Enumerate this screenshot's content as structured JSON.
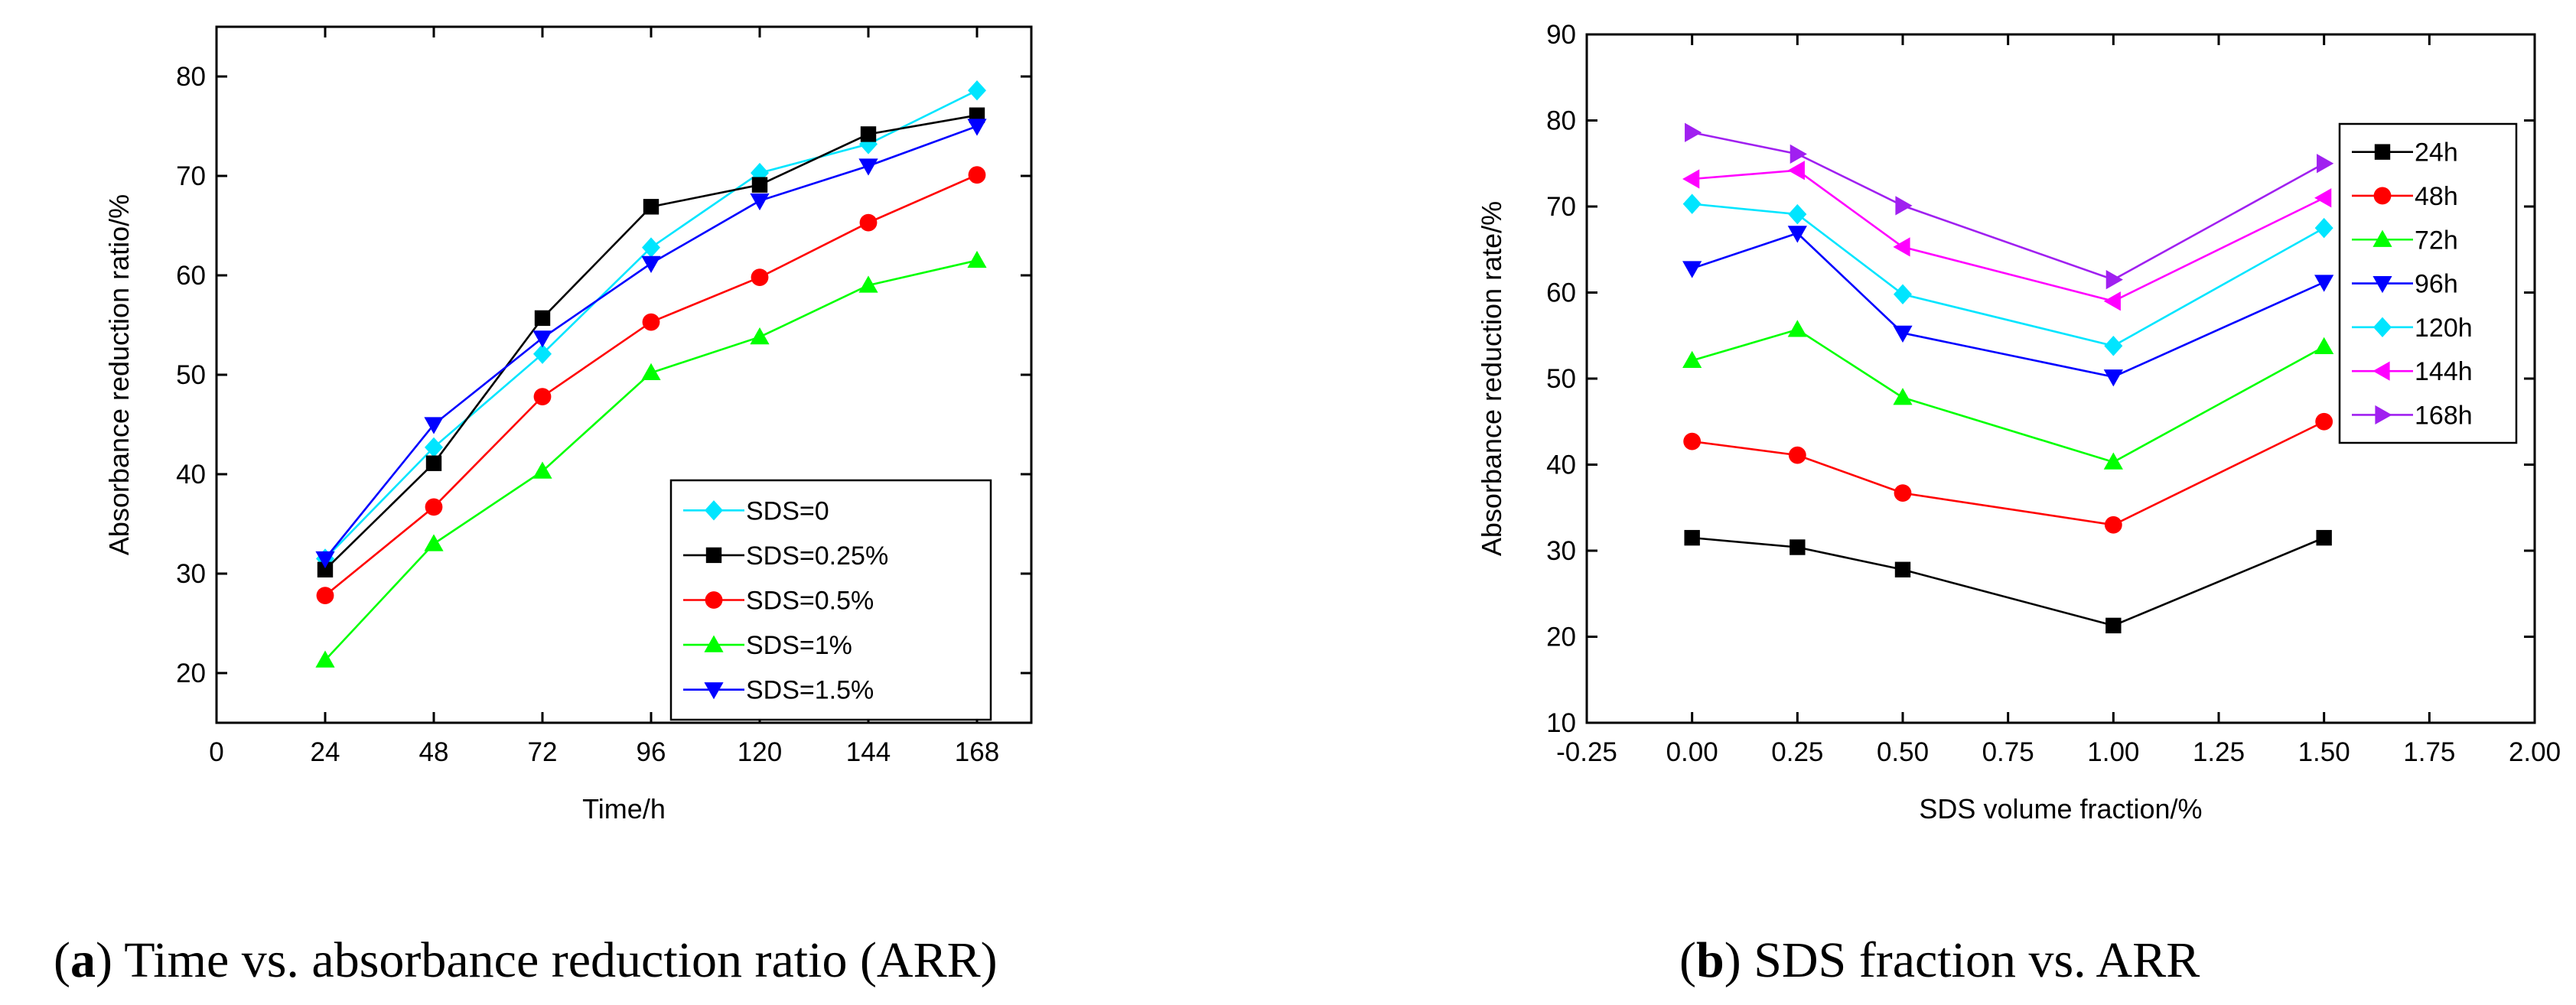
{
  "panels": [
    {
      "caption_letter": "a",
      "caption_text": " Time vs. absorbance reduction ratio (ARR)"
    },
    {
      "caption_letter": "b",
      "caption_text": " SDS fraction vs. ARR"
    }
  ],
  "chart_data": [
    {
      "type": "line",
      "title": "",
      "xlabel": "Time/h",
      "ylabel": "Absorbance reduction ratio/%",
      "xlim": [
        0,
        180
      ],
      "ylim": [
        15,
        85
      ],
      "x_ticks": [
        0,
        24,
        48,
        72,
        96,
        120,
        144,
        168
      ],
      "y_ticks": [
        20,
        30,
        40,
        50,
        60,
        70,
        80
      ],
      "x_tick_labels": [
        "0",
        "24",
        "48",
        "72",
        "96",
        "120",
        "144",
        "168"
      ],
      "y_tick_labels": [
        "20",
        "30",
        "40",
        "50",
        "60",
        "70",
        "80"
      ],
      "legend_position": "bottom-right",
      "x": [
        24,
        48,
        72,
        96,
        120,
        144,
        168
      ],
      "series": [
        {
          "name": "SDS=0",
          "color": "#00e5ff",
          "marker": "diamond",
          "values": [
            31.5,
            42.7,
            52.1,
            62.8,
            70.3,
            73.2,
            78.6
          ]
        },
        {
          "name": "SDS=0.25%",
          "color": "#000000",
          "marker": "square",
          "values": [
            30.4,
            41.1,
            55.7,
            66.9,
            69.1,
            74.2,
            76.1
          ]
        },
        {
          "name": "SDS=0.5%",
          "color": "#ff0000",
          "marker": "circle",
          "values": [
            27.8,
            36.7,
            47.8,
            55.3,
            59.8,
            65.3,
            70.1
          ]
        },
        {
          "name": "SDS=1%",
          "color": "#00ff00",
          "marker": "triangle-up",
          "values": [
            21.3,
            33.0,
            40.3,
            50.2,
            53.8,
            59.0,
            61.5
          ]
        },
        {
          "name": "SDS=1.5%",
          "color": "#0000ff",
          "marker": "triangle-down",
          "values": [
            31.5,
            45.0,
            53.7,
            61.2,
            67.5,
            71.0,
            75.0
          ]
        }
      ]
    },
    {
      "type": "line",
      "title": "",
      "xlabel": "SDS volume fraction/%",
      "ylabel": "Absorbance reduction rate/%",
      "xlim": [
        -0.25,
        2.0
      ],
      "ylim": [
        10,
        90
      ],
      "x_ticks": [
        -0.25,
        0,
        0.25,
        0.5,
        0.75,
        1.0,
        1.25,
        1.5,
        1.75,
        2.0
      ],
      "y_ticks": [
        10,
        20,
        30,
        40,
        50,
        60,
        70,
        80,
        90
      ],
      "x_tick_labels": [
        "-0.25",
        "0.00",
        "0.25",
        "0.50",
        "0.75",
        "1.00",
        "1.25",
        "1.50",
        "1.75",
        "2.00"
      ],
      "y_tick_labels": [
        "10",
        "20",
        "30",
        "40",
        "50",
        "60",
        "70",
        "80",
        "90"
      ],
      "legend_position": "top-right",
      "x": [
        0,
        0.25,
        0.5,
        1.0,
        1.5
      ],
      "series": [
        {
          "name": "24h",
          "color": "#000000",
          "marker": "square",
          "values": [
            31.5,
            30.4,
            27.8,
            21.3,
            31.5
          ]
        },
        {
          "name": "48h",
          "color": "#ff0000",
          "marker": "circle",
          "values": [
            42.7,
            41.1,
            36.7,
            33.0,
            45.0
          ]
        },
        {
          "name": "72h",
          "color": "#00ff00",
          "marker": "triangle-up",
          "values": [
            52.1,
            55.7,
            47.8,
            40.3,
            53.7
          ]
        },
        {
          "name": "96h",
          "color": "#0000ff",
          "marker": "triangle-down",
          "values": [
            62.8,
            66.9,
            55.3,
            50.2,
            61.2
          ]
        },
        {
          "name": "120h",
          "color": "#00e5ff",
          "marker": "diamond",
          "values": [
            70.3,
            69.1,
            59.8,
            53.8,
            67.5
          ]
        },
        {
          "name": "144h",
          "color": "#ff00ff",
          "marker": "triangle-left",
          "values": [
            73.2,
            74.2,
            65.3,
            59.0,
            71.0
          ]
        },
        {
          "name": "168h",
          "color": "#a020f0",
          "marker": "triangle-right",
          "values": [
            78.6,
            76.1,
            70.1,
            61.5,
            75.0
          ]
        }
      ]
    }
  ]
}
